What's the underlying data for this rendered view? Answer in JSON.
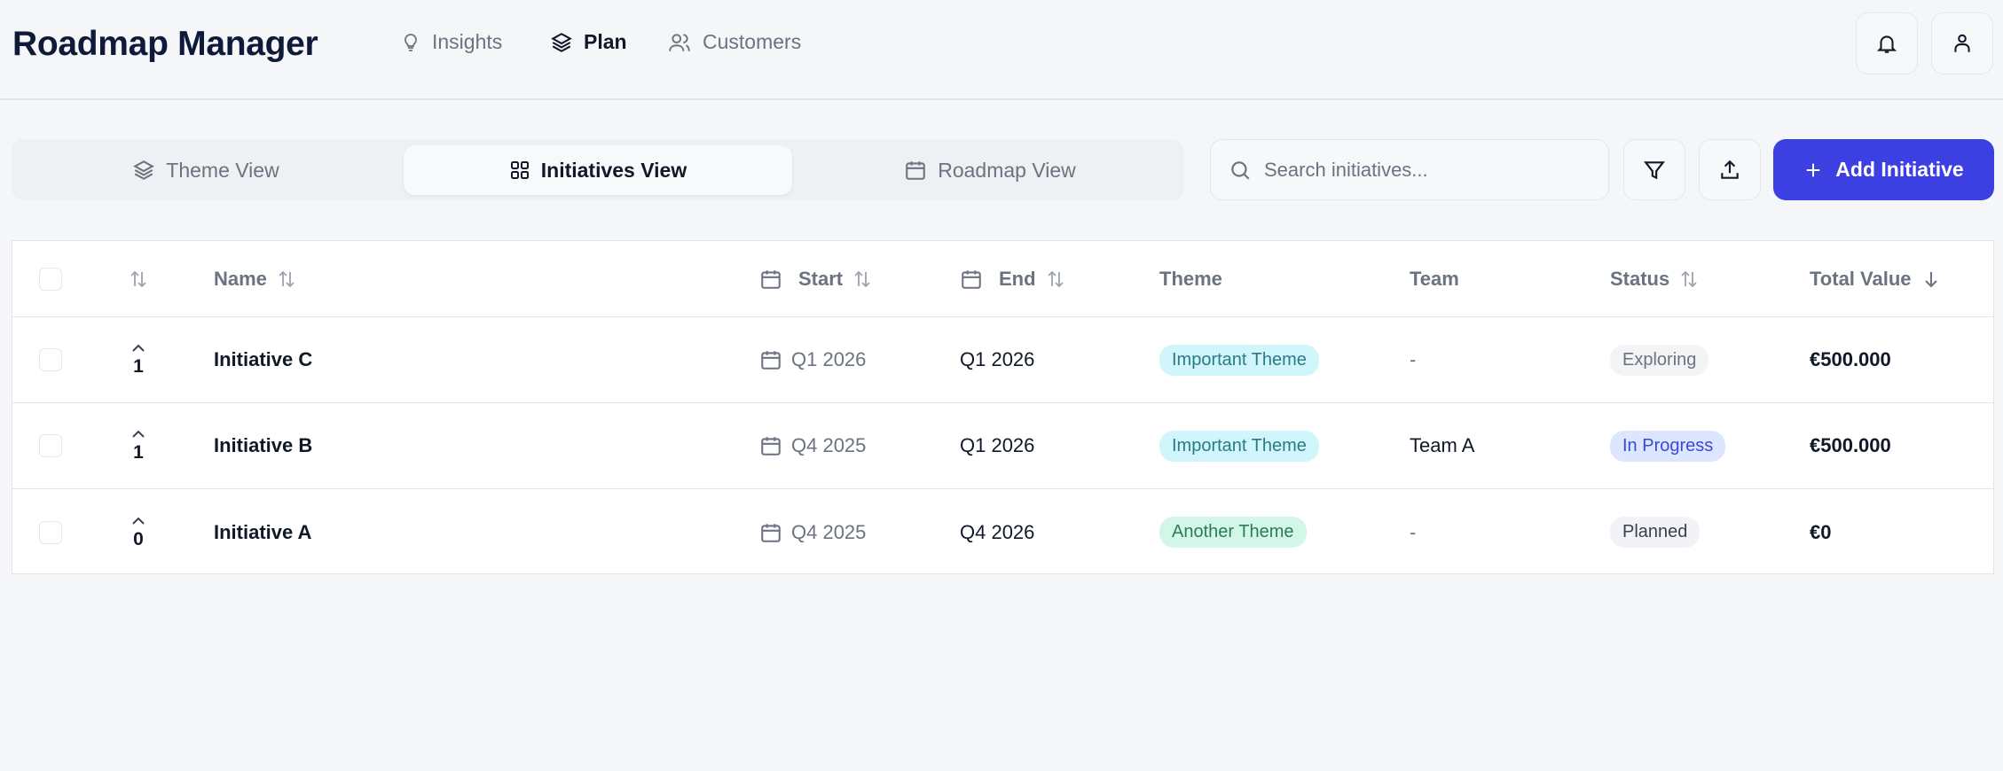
{
  "app": {
    "title": "Roadmap Manager"
  },
  "nav": [
    {
      "label": "Insights",
      "icon": "lightbulb-icon"
    },
    {
      "label": "Plan",
      "icon": "layers-icon",
      "active": true
    },
    {
      "label": "Customers",
      "icon": "users-icon"
    }
  ],
  "views": [
    {
      "label": "Theme View",
      "icon": "layers-icon"
    },
    {
      "label": "Initiatives View",
      "icon": "grid-icon",
      "active": true
    },
    {
      "label": "Roadmap View",
      "icon": "calendar-icon"
    }
  ],
  "search": {
    "placeholder": "Search initiatives...",
    "value": ""
  },
  "actions": {
    "add_label": "Add Initiative"
  },
  "colors": {
    "primary": "#3c40e2",
    "title": "#0f1a3a",
    "background": "#f5f6f8"
  },
  "table": {
    "headers": {
      "name": "Name",
      "start": "Start",
      "end": "End",
      "theme": "Theme",
      "team": "Team",
      "status": "Status",
      "total": "Total Value"
    },
    "rows": [
      {
        "votes": "1",
        "name": "Initiative C",
        "start": "Q1 2026",
        "end": "Q1 2026",
        "theme": "Important Theme",
        "team": "-",
        "status": "Exploring",
        "total": "€500.000"
      },
      {
        "votes": "1",
        "name": "Initiative B",
        "start": "Q4 2025",
        "end": "Q1 2026",
        "theme": "Important Theme",
        "team": "Team A",
        "status": "In Progress",
        "total": "€500.000"
      },
      {
        "votes": "0",
        "name": "Initiative A",
        "start": "Q4 2025",
        "end": "Q4 2026",
        "theme": "Another Theme",
        "team": "-",
        "status": "Planned",
        "total": "€0"
      }
    ]
  }
}
